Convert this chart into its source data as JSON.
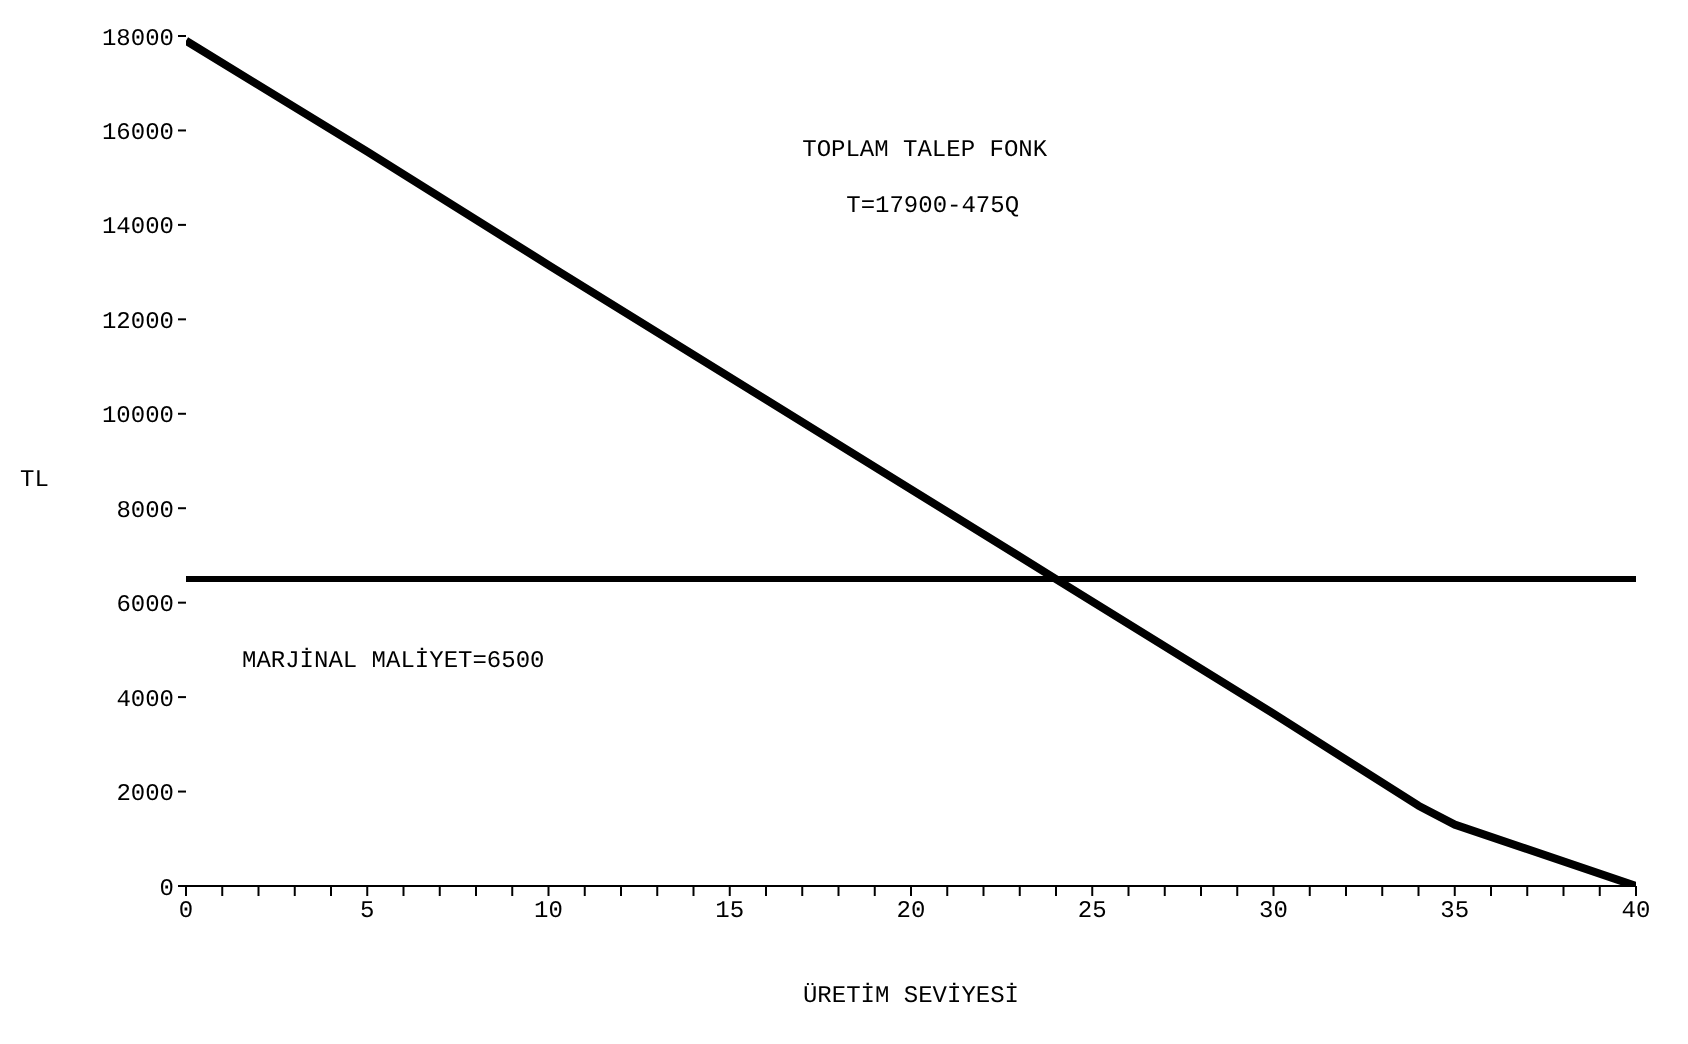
{
  "chart_data": {
    "type": "line",
    "xlabel": "ÜRETİM SEVİYESİ",
    "ylabel": "TL",
    "annotations": [
      "TOPLAM TALEP FONK",
      "T=17900-475Q"
    ],
    "series": [
      {
        "color": "#000000",
        "x": [
          0,
          5,
          10,
          16,
          20,
          24,
          30,
          34,
          35,
          40
        ],
        "values": [
          17900,
          15550,
          13150,
          10300,
          8400,
          6500,
          3650,
          1700,
          1300,
          0
        ]
      }
    ],
    "ref_lines": [
      {
        "axis": "y",
        "value": 6500,
        "label": "MARJİNAL MALİYET=6500",
        "color": "#000000"
      }
    ],
    "xlim": [
      0,
      40
    ],
    "xticks": [
      0,
      {
        "value": 1,
        "label": null
      },
      {
        "value": 2,
        "label": null
      },
      {
        "value": 3,
        "label": null
      },
      {
        "value": 4,
        "label": null
      },
      5,
      {
        "value": 6,
        "label": null
      },
      {
        "value": 7,
        "label": null
      },
      {
        "value": 8,
        "label": null
      },
      {
        "value": 9,
        "label": null
      },
      10,
      {
        "value": 11,
        "label": null
      },
      {
        "value": 12,
        "label": null
      },
      {
        "value": 13,
        "label": null
      },
      {
        "value": 14,
        "label": null
      },
      15,
      {
        "value": 16,
        "label": null
      },
      {
        "value": 17,
        "label": null
      },
      {
        "value": 18,
        "label": null
      },
      {
        "value": 19,
        "label": null
      },
      20,
      {
        "value": 21,
        "label": null
      },
      {
        "value": 22,
        "label": null
      },
      {
        "value": 23,
        "label": null
      },
      {
        "value": 24,
        "label": null
      },
      25,
      {
        "value": 26,
        "label": null
      },
      {
        "value": 27,
        "label": null
      },
      {
        "value": 28,
        "label": null
      },
      {
        "value": 29,
        "label": null
      },
      30,
      {
        "value": 31,
        "label": null
      },
      {
        "value": 32,
        "label": null
      },
      {
        "value": 33,
        "label": null
      },
      {
        "value": 34,
        "label": null
      },
      35,
      {
        "value": 36,
        "label": null
      },
      {
        "value": 37,
        "label": null
      },
      {
        "value": 38,
        "label": null
      },
      {
        "value": 39,
        "label": null
      },
      40
    ],
    "ylim": [
      0,
      18000
    ],
    "yticks": [
      0,
      2000,
      4000,
      6000,
      8000,
      10000,
      12000,
      14000,
      16000,
      18000
    ],
    "grid": false,
    "legend": false,
    "marker": "none",
    "line_style": "solid"
  }
}
